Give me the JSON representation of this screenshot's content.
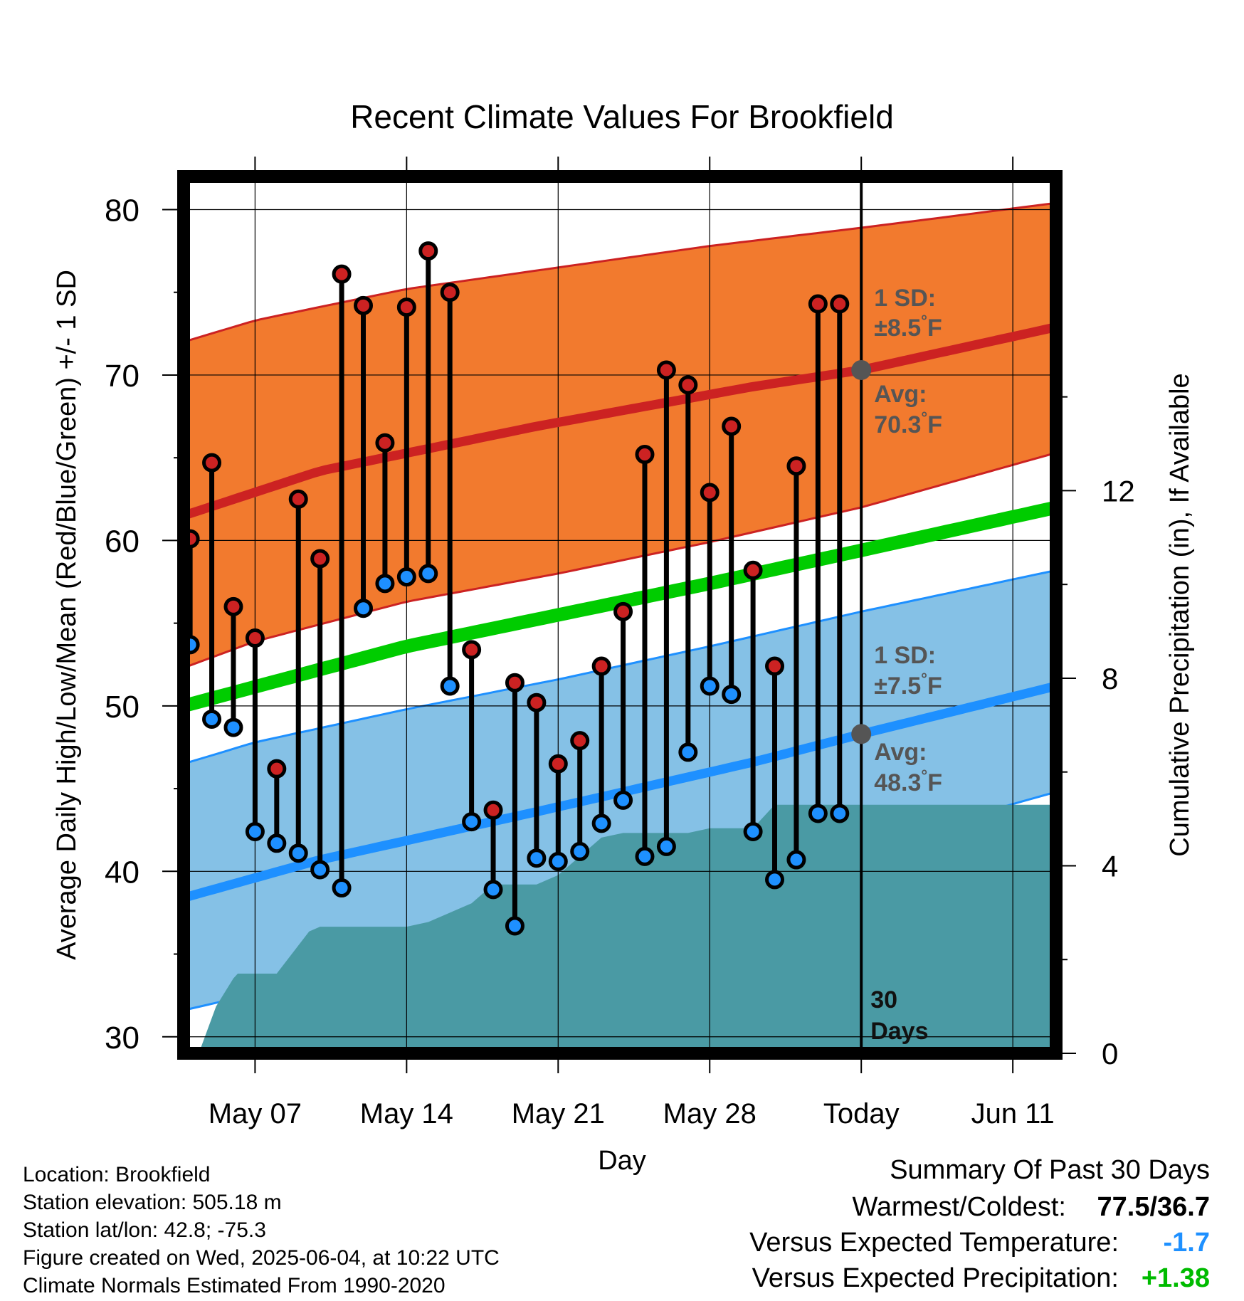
{
  "chart_data": {
    "type": "line",
    "title": "Recent Climate Values For Brookfield",
    "xlabel": "Day",
    "ylabel_left": "Average Daily High/Low/Mean (Red/Blue/Green) +/- 1 SD",
    "ylabel_right": "Cumulative Precipitation (in), If Available",
    "ylim_left": [
      29,
      82
    ],
    "ylim_right": [
      0,
      18.7
    ],
    "grid": true,
    "x_ticks": [
      {
        "day": 7,
        "label": "May 07"
      },
      {
        "day": 14,
        "label": "May 14"
      },
      {
        "day": 21,
        "label": "May 21"
      },
      {
        "day": 28,
        "label": "May 28"
      },
      {
        "day": 35,
        "label": "Today"
      },
      {
        "day": 42,
        "label": "Jun 11"
      }
    ],
    "y_ticks_left": [
      30,
      40,
      50,
      60,
      70,
      80
    ],
    "y_ticks_right": [
      0,
      4,
      8,
      12
    ],
    "x_range": [
      3.7,
      44.0
    ],
    "today_day": 35,
    "today_label_line1": "30",
    "today_label_line2": "Days",
    "normals": {
      "high_avg": {
        "x": [
          3.7,
          10,
          20,
          30,
          35,
          44
        ],
        "y": [
          61.5,
          64.2,
          66.9,
          69.3,
          70.3,
          72.9
        ]
      },
      "high_upper": {
        "x": [
          3.7,
          7,
          14,
          21,
          28,
          35,
          44
        ],
        "y": [
          72.0,
          73.3,
          75.2,
          76.5,
          77.8,
          78.9,
          80.4
        ]
      },
      "high_lower": {
        "x": [
          3.7,
          7,
          14,
          21,
          28,
          35,
          44
        ],
        "y": [
          52.3,
          53.9,
          56.3,
          58.0,
          59.9,
          62.0,
          65.3
        ]
      },
      "mean": {
        "x": [
          3.7,
          14,
          21,
          28,
          35,
          44
        ],
        "y": [
          50.0,
          53.6,
          55.5,
          57.4,
          59.4,
          62.0
        ]
      },
      "low_avg": {
        "x": [
          3.7,
          10,
          20,
          30,
          35,
          44
        ],
        "y": [
          38.4,
          40.7,
          43.6,
          46.6,
          48.3,
          51.2
        ]
      },
      "low_upper": {
        "x": [
          3.7,
          7,
          14,
          21,
          28,
          35,
          44
        ],
        "y": [
          46.5,
          47.8,
          49.8,
          51.6,
          53.6,
          55.7,
          58.2
        ]
      },
      "low_lower": {
        "x": [
          3.7,
          7,
          14,
          21,
          28,
          35,
          44
        ],
        "y": [
          31.6,
          32.6,
          34.3,
          36.0,
          38.0,
          41.5,
          44.8
        ]
      }
    },
    "annotations": {
      "high_sd_label": "1 SD:",
      "high_sd_value": "±8.5°F",
      "high_avg_label": "Avg:",
      "high_avg_value": "70.3°F",
      "low_sd_label": "1 SD:",
      "low_sd_value": "±7.5°F",
      "low_avg_label": "Avg:",
      "low_avg_value": "48.3°F"
    },
    "observations": {
      "day": [
        4,
        5,
        6,
        7,
        8,
        9,
        10,
        11,
        12,
        13,
        14,
        15,
        16,
        17,
        18,
        19,
        20,
        21,
        22,
        23,
        24,
        25,
        26,
        27,
        28,
        29,
        30,
        31,
        32,
        33,
        34
      ],
      "high": [
        60.1,
        64.7,
        56.0,
        54.1,
        46.2,
        62.5,
        58.9,
        76.1,
        74.2,
        65.9,
        74.1,
        77.5,
        75.0,
        53.4,
        43.7,
        51.4,
        50.2,
        46.5,
        47.9,
        52.4,
        55.7,
        65.2,
        70.3,
        69.4,
        62.9,
        66.9,
        58.2,
        52.4,
        64.5,
        74.3,
        74.3
      ],
      "low": [
        53.7,
        49.2,
        48.7,
        42.4,
        41.7,
        41.1,
        40.1,
        39.0,
        55.9,
        57.4,
        57.8,
        58.0,
        51.2,
        43.0,
        38.9,
        36.7,
        40.8,
        40.6,
        41.2,
        42.9,
        44.3,
        40.9,
        41.5,
        47.2,
        51.2,
        50.7,
        42.4,
        39.5,
        40.7,
        43.5,
        43.5
      ]
    },
    "precip_cumulative": {
      "day": [
        3.7,
        4.4,
        5.2,
        6.0,
        6.2,
        7.0,
        8.0,
        9.0,
        9.5,
        10,
        11,
        12,
        13,
        14,
        15,
        16,
        17,
        18,
        19,
        20,
        21,
        22,
        23,
        24,
        25,
        26,
        27,
        28,
        29,
        30,
        31,
        32,
        33,
        34,
        35,
        36,
        40,
        44
      ],
      "value": [
        0,
        0,
        1.0,
        1.6,
        1.7,
        1.7,
        1.7,
        2.3,
        2.6,
        2.7,
        2.7,
        2.7,
        2.7,
        2.7,
        2.8,
        3.0,
        3.2,
        3.6,
        3.6,
        3.6,
        3.8,
        4.2,
        4.6,
        4.7,
        4.7,
        4.7,
        4.7,
        4.8,
        4.8,
        4.8,
        5.3,
        5.3,
        5.3,
        5.3,
        5.3,
        5.3,
        5.3,
        5.3
      ]
    },
    "colors": {
      "high_band": "#f27a2e",
      "high_line": "#cc2222",
      "mean_line": "#00cc00",
      "low_band": "#85c1e6",
      "low_line": "#1e90ff",
      "precip": "#4a9aa4",
      "marker_high": "#cc2222",
      "marker_low": "#1e90ff",
      "annotation": "#555555",
      "avg_dot": "#555555"
    }
  },
  "footer": {
    "location": "Location: Brookfield",
    "elevation": "Station elevation: 505.18 m",
    "latlon": "Station lat/lon: 42.8; -75.3",
    "created": "Figure created on Wed, 2025-06-04, at 10:22 UTC",
    "normals": "Climate Normals Estimated From 1990-2020"
  },
  "summary": {
    "title": "Summary Of Past 30 Days",
    "warm_cold_label": "Warmest/Coldest:",
    "warm_cold_value": "77.5/36.7",
    "temp_label": "Versus Expected Temperature:",
    "temp_value": "-1.7",
    "temp_color": "#1e90ff",
    "precip_label": "Versus Expected Precipitation:",
    "precip_value": "+1.38",
    "precip_color": "#00bb00"
  }
}
